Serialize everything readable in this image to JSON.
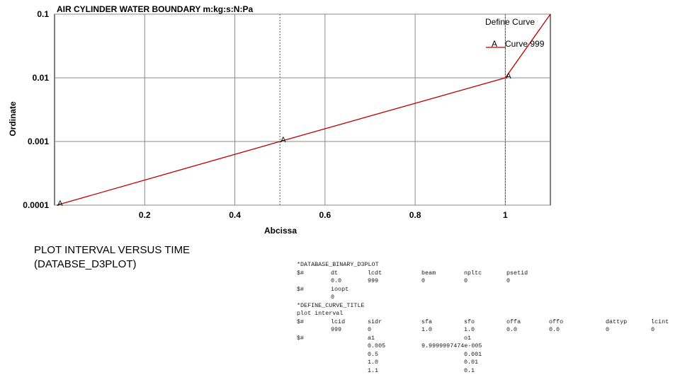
{
  "chart_data": {
    "type": "line",
    "title": "AIR CYLINDER WATER BOUNDARY m:kg:s:N:Pa",
    "xlabel": "Abcissa",
    "ylabel": "Ordinate",
    "xlim": [
      0,
      1.1
    ],
    "ylim": [
      0.0001,
      0.1
    ],
    "yscale": "log",
    "grid": true,
    "xticks": [
      "0.2",
      "0.4",
      "0.6",
      "0.8",
      "1"
    ],
    "yticks": [
      "0.0001",
      "0.001",
      "0.01",
      "0.1"
    ],
    "legend": {
      "title": "Define Curve",
      "position": "top-right",
      "entries": [
        {
          "marker": "A",
          "label": "Curve 999"
        }
      ]
    },
    "series": [
      {
        "name": "Curve 999",
        "color": "#c00000",
        "marker": "A",
        "x": [
          0.005,
          0.5,
          1.0,
          1.1
        ],
        "y": [
          0.0001,
          0.001,
          0.01,
          0.1
        ]
      }
    ]
  },
  "caption": {
    "line1": "PLOT INTERVAL VERSUS TIME",
    "line2": "(DATABSE_D3PLOT)"
  },
  "keyword_text": {
    "rows": [
      [
        "*DATABASE_BINARY_D3PLOT"
      ],
      [
        "$#",
        "dt",
        "lcdt",
        "beam",
        "npltc",
        "psetid"
      ],
      [
        "",
        "0.0",
        "999",
        "0",
        "0",
        "0"
      ],
      [
        "$#",
        "ioopt"
      ],
      [
        "",
        "0"
      ],
      [
        "*DEFINE_CURVE_TITLE"
      ],
      [
        "plot interval"
      ],
      [
        "$#",
        "lcid",
        "sidr",
        "sfa",
        "sfo",
        "offa",
        "offo",
        "dattyp",
        "lcint"
      ],
      [
        "",
        "999",
        "0",
        "1.0",
        "1.0",
        "0.0",
        "0.0",
        "0",
        "0"
      ],
      [
        "$#",
        "",
        "a1",
        "",
        "o1"
      ],
      [
        "",
        "",
        "0.005",
        "9.9999997474e-005"
      ],
      [
        "",
        "",
        "0.5",
        "",
        "0.001"
      ],
      [
        "",
        "",
        "1.0",
        "",
        "0.01"
      ],
      [
        "",
        "",
        "1.1",
        "",
        "0.1"
      ]
    ]
  }
}
